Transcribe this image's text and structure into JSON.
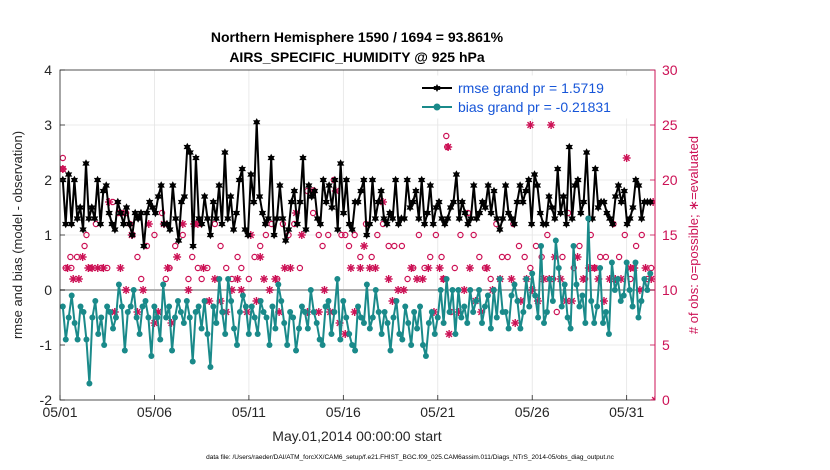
{
  "chart_data": {
    "type": "line",
    "title": "Northern Hemisphere 1590 / 1694 = 93.861%",
    "subtitle": "AIRS_SPECIFIC_HUMIDITY @ 925 hPa",
    "xlabel": "May.01,2014 00:00:00 start",
    "ylabel_left": "rmse and bias (model - observation)",
    "ylabel_right": "# of obs: o=possible; ∗=evaluated",
    "footnote": "data file: /Users/raeder/DAI/ATM_forcXX/CAM6_setup/f.e21.FHIST_BGC.f09_025.CAM6assim.011/Diags_NTrS_2014-05/obs_diag_output.nc",
    "x_range": [
      0,
      31.5
    ],
    "ylim_left": [
      -2,
      4
    ],
    "ylim_right": [
      0,
      30
    ],
    "x_ticks": [
      {
        "pos": 0,
        "label": "05/01"
      },
      {
        "pos": 5,
        "label": "05/06"
      },
      {
        "pos": 10,
        "label": "05/11"
      },
      {
        "pos": 15,
        "label": "05/16"
      },
      {
        "pos": 20,
        "label": "05/21"
      },
      {
        "pos": 25,
        "label": "05/26"
      },
      {
        "pos": 30,
        "label": "05/31"
      }
    ],
    "y_ticks_left": [
      "-2",
      "-1",
      "0",
      "1",
      "2",
      "3",
      "4"
    ],
    "y_ticks_right": [
      "0",
      "5",
      "10",
      "15",
      "20",
      "25",
      "30"
    ],
    "legend_position": "top-right",
    "colors": {
      "rmse": "#000000",
      "bias": "#1a8a8a",
      "obs": "#cc1155",
      "zero_line": "#b0b0b0",
      "grid": "#e4e4e4"
    },
    "series": [
      {
        "name": "rmse grand pr = 1.5719",
        "marker": "hexagram",
        "values": [
          2.0,
          1.2,
          2.1,
          1.2,
          2.0,
          1.3,
          1.5,
          1.1,
          2.3,
          1.3,
          1.5,
          1.3,
          2.0,
          1.2,
          1.8,
          1.9,
          1.4,
          1.2,
          1.1,
          1.6,
          1.4,
          1.2,
          1.5,
          1.2,
          1.0,
          1.4,
          1.3,
          1.4,
          0.8,
          1.4,
          1.6,
          1.5,
          1.4,
          1.7,
          1.9,
          1.2,
          1.2,
          1.1,
          1.9,
          1.3,
          0.9,
          1.6,
          1.7,
          2.6,
          2.5,
          0.8,
          2.4,
          1.3,
          1.2,
          1.7,
          1.3,
          1.0,
          1.6,
          1.3,
          1.9,
          1.2,
          2.5,
          1.3,
          1.7,
          1.1,
          1.4,
          2.0,
          2.2,
          1.1,
          1.0,
          2.1,
          1.6,
          3.05,
          1.7,
          1.4,
          1.2,
          1.3,
          2.4,
          1.0,
          1.3,
          1.9,
          1.3,
          0.9,
          1.1,
          1.6,
          1.8,
          1.2,
          1.6,
          2.4,
          1.1,
          1.9,
          1.7,
          1.8,
          1.3,
          1.2,
          2.0,
          1.6,
          1.9,
          1.5,
          2.0,
          1.1,
          2.3,
          1.4,
          2.0,
          1.2,
          1.1,
          1.6,
          1.6,
          1.8,
          2.0,
          1.0,
          1.2,
          2.0,
          1.3,
          1.6,
          1.8,
          1.3,
          1.2,
          1.4,
          1.3,
          2.0,
          1.2,
          1.3,
          1.3,
          2.0,
          1.5,
          1.6,
          1.8,
          1.3,
          2.0,
          1.2,
          1.4,
          1.9,
          1.2,
          1.5,
          1.6,
          1.3,
          1.2,
          1.3,
          1.5,
          1.6,
          2.1,
          1.3,
          1.6,
          1.4,
          1.2,
          1.3,
          1.9,
          1.3,
          1.4,
          1.6,
          1.5,
          1.9,
          1.4,
          1.8,
          1.3,
          1.1,
          1.3,
          1.9,
          1.4,
          1.3,
          1.2,
          1.6,
          1.9,
          1.6,
          1.8,
          2.0,
          1.2,
          2.1,
          1.9,
          1.4,
          1.2,
          1.2,
          1.7,
          1.5,
          1.3,
          2.2,
          1.4,
          1.7,
          1.2,
          2.6,
          1.3,
          1.9,
          2.0,
          1.4,
          1.6,
          2.5,
          1.3,
          1.3,
          2.2,
          1.5,
          1.6,
          1.6,
          1.4,
          1.3,
          1.2,
          1.7,
          1.9,
          1.6,
          1.8,
          1.2,
          1.3,
          1.5,
          2.0,
          1.9,
          1.3,
          1.6,
          1.6,
          1.6
        ]
      },
      {
        "name": "bias grand pr = -0.21831",
        "marker": "circle",
        "values": [
          -0.3,
          -0.9,
          -0.5,
          -0.1,
          -0.6,
          -0.9,
          -0.3,
          -0.4,
          -0.9,
          -1.7,
          -0.5,
          -0.2,
          -0.8,
          -0.5,
          -1.0,
          -0.3,
          -0.4,
          -0.7,
          -0.5,
          0.1,
          -0.3,
          -1.1,
          -0.4,
          -0.3,
          0.0,
          -0.5,
          -0.8,
          -0.3,
          -0.2,
          -0.5,
          -1.2,
          -0.3,
          -0.5,
          -0.9,
          0.1,
          -0.5,
          -0.3,
          -1.1,
          -0.5,
          -0.2,
          -0.4,
          -0.6,
          -0.2,
          -0.5,
          -1.3,
          -0.4,
          -0.3,
          -0.7,
          -0.2,
          -0.8,
          -1.4,
          -0.3,
          -0.6,
          0.2,
          -0.4,
          -0.8,
          0.2,
          -0.2,
          -0.7,
          -1.0,
          -0.4,
          -0.1,
          -0.3,
          -0.8,
          -0.3,
          -0.5,
          -0.8,
          -0.2,
          -0.4,
          -0.5,
          -1.0,
          -0.3,
          -0.7,
          0.1,
          -0.2,
          -0.6,
          -1.0,
          -0.4,
          -0.5,
          -1.1,
          -0.7,
          -0.3,
          -0.4,
          -0.7,
          0.0,
          -0.4,
          -0.6,
          -0.9,
          -1.0,
          -0.3,
          -0.2,
          -0.8,
          -0.4,
          0.2,
          -0.9,
          -0.2,
          -0.5,
          -0.8,
          -1.0,
          -1.1,
          -0.3,
          -0.5,
          -0.6,
          0.1,
          -0.7,
          -0.5,
          0.0,
          -0.4,
          -0.8,
          -0.4,
          -0.6,
          -1.1,
          -0.5,
          -0.2,
          -0.8,
          -0.9,
          -0.3,
          -0.6,
          -1.0,
          -0.4,
          -0.7,
          -0.3,
          -1.0,
          -1.2,
          -0.6,
          -0.4,
          -0.8,
          -0.5,
          0.0,
          -0.6,
          0.2,
          -0.4,
          0.0,
          -0.8,
          0.0,
          -0.5,
          -0.3,
          -0.6,
          0.0,
          -0.4,
          -0.2,
          0.0,
          -0.6,
          -0.3,
          -0.1,
          -0.7,
          0.0,
          -0.5,
          0.2,
          -0.4,
          -0.4,
          -0.7,
          -0.1,
          0.1,
          -0.2,
          -0.7,
          -0.4,
          0.2,
          -0.3,
          0.3,
          -0.1,
          -0.5,
          0.8,
          -0.6,
          -0.4,
          0.2,
          -0.2,
          0.9,
          0.4,
          -0.3,
          0.1,
          -0.5,
          -0.7,
          0.8,
          0.1,
          -0.3,
          -0.1,
          -0.6,
          1.3,
          -0.2,
          -0.6,
          -0.3,
          0.4,
          -0.6,
          -0.4,
          -0.8,
          0.5,
          0.0,
          0.2,
          -0.2,
          -0.1,
          0.5,
          0.0,
          -0.3,
          0.5,
          -0.5,
          -0.2,
          0.2,
          0.0,
          0.3
        ]
      }
    ],
    "obs_possible": [
      [
        0.15,
        22
      ],
      [
        0.15,
        21
      ],
      [
        0.3,
        12
      ],
      [
        0.55,
        13
      ],
      [
        0.9,
        13
      ],
      [
        0.6,
        12
      ],
      [
        1.3,
        14
      ],
      [
        1.4,
        15
      ],
      [
        1.6,
        12
      ],
      [
        1.9,
        16
      ],
      [
        2.2,
        12
      ],
      [
        2.5,
        12
      ],
      [
        2.8,
        18
      ],
      [
        3.1,
        17
      ],
      [
        3.3,
        17
      ],
      [
        3.5,
        17
      ],
      [
        3.7,
        16
      ],
      [
        4.1,
        13
      ],
      [
        4.3,
        11
      ],
      [
        4.6,
        14
      ],
      [
        5.0,
        15
      ],
      [
        5.4,
        17
      ],
      [
        5.6,
        11
      ],
      [
        5.8,
        12
      ],
      [
        6.1,
        14
      ],
      [
        6.5,
        15
      ],
      [
        6.8,
        11
      ],
      [
        7.0,
        13
      ],
      [
        7.3,
        12
      ],
      [
        7.5,
        11
      ],
      [
        7.8,
        12
      ],
      [
        8.2,
        16
      ],
      [
        8.5,
        14
      ],
      [
        8.8,
        12
      ],
      [
        9.1,
        11
      ],
      [
        9.4,
        13
      ],
      [
        9.6,
        12
      ],
      [
        10.0,
        11
      ],
      [
        10.3,
        13
      ],
      [
        10.6,
        14
      ],
      [
        10.9,
        15
      ],
      [
        11.2,
        16
      ],
      [
        11.5,
        11
      ],
      [
        11.8,
        16
      ],
      [
        12.1,
        15
      ],
      [
        12.4,
        16
      ],
      [
        12.7,
        12
      ],
      [
        13.1,
        19
      ],
      [
        13.4,
        17
      ],
      [
        13.7,
        15
      ],
      [
        13.9,
        14
      ],
      [
        14.2,
        15
      ],
      [
        14.5,
        20
      ],
      [
        14.9,
        15
      ],
      [
        15.1,
        15
      ],
      [
        15.3,
        14
      ],
      [
        15.6,
        15
      ],
      [
        15.9,
        13
      ],
      [
        16.2,
        16
      ],
      [
        16.5,
        13
      ],
      [
        16.8,
        15
      ],
      [
        17.1,
        16
      ],
      [
        17.4,
        14
      ],
      [
        17.7,
        14
      ],
      [
        18.1,
        14
      ],
      [
        18.4,
        11
      ],
      [
        18.7,
        12
      ],
      [
        19.0,
        15
      ],
      [
        19.3,
        12
      ],
      [
        19.6,
        13
      ],
      [
        19.9,
        15
      ],
      [
        20.2,
        13
      ],
      [
        20.3,
        11
      ],
      [
        20.45,
        24
      ],
      [
        20.5,
        23
      ],
      [
        20.7,
        8
      ],
      [
        20.9,
        12
      ],
      [
        21.2,
        15
      ],
      [
        21.6,
        17
      ],
      [
        21.9,
        15
      ],
      [
        22.2,
        13
      ],
      [
        22.5,
        12
      ],
      [
        22.8,
        11
      ],
      [
        23.1,
        16
      ],
      [
        23.4,
        13
      ],
      [
        23.7,
        13
      ],
      [
        24.0,
        16
      ],
      [
        24.3,
        14
      ],
      [
        24.6,
        13
      ],
      [
        24.9,
        12
      ],
      [
        25.2,
        14
      ],
      [
        25.5,
        13
      ],
      [
        25.8,
        15
      ],
      [
        26.1,
        11
      ],
      [
        26.3,
        8
      ],
      [
        26.6,
        13
      ],
      [
        26.9,
        17
      ],
      [
        27.2,
        12
      ],
      [
        27.5,
        14
      ],
      [
        27.8,
        11
      ],
      [
        28.1,
        15
      ],
      [
        28.3,
        12
      ],
      [
        28.6,
        13
      ],
      [
        28.9,
        13
      ],
      [
        29.3,
        16
      ],
      [
        29.6,
        13
      ],
      [
        29.9,
        15
      ],
      [
        30.2,
        11
      ],
      [
        30.5,
        14
      ],
      [
        30.8,
        15
      ],
      [
        31.1,
        11
      ],
      [
        31.3,
        12
      ]
    ],
    "obs_evaluated": [
      [
        0.15,
        21
      ],
      [
        0.4,
        12
      ],
      [
        0.7,
        11
      ],
      [
        1.0,
        11
      ],
      [
        1.2,
        13
      ],
      [
        1.5,
        12
      ],
      [
        1.7,
        12
      ],
      [
        2.0,
        12
      ],
      [
        2.3,
        12
      ],
      [
        2.6,
        18
      ],
      [
        2.9,
        8
      ],
      [
        3.2,
        12
      ],
      [
        3.5,
        10
      ],
      [
        3.8,
        15
      ],
      [
        4.1,
        8
      ],
      [
        4.4,
        10
      ],
      [
        4.7,
        16
      ],
      [
        5.0,
        7
      ],
      [
        5.2,
        8
      ],
      [
        5.5,
        16
      ],
      [
        5.7,
        12
      ],
      [
        5.9,
        7
      ],
      [
        6.2,
        13
      ],
      [
        6.5,
        16
      ],
      [
        6.8,
        10
      ],
      [
        7.1,
        16
      ],
      [
        7.3,
        16
      ],
      [
        7.6,
        12
      ],
      [
        7.9,
        9
      ],
      [
        8.2,
        11
      ],
      [
        8.5,
        9
      ],
      [
        8.8,
        8
      ],
      [
        9.1,
        10
      ],
      [
        9.4,
        11
      ],
      [
        9.6,
        10
      ],
      [
        9.9,
        8
      ],
      [
        10.1,
        15
      ],
      [
        10.4,
        9
      ],
      [
        10.6,
        13
      ],
      [
        10.8,
        11
      ],
      [
        11.1,
        10
      ],
      [
        11.4,
        11
      ],
      [
        11.6,
        8
      ],
      [
        11.9,
        12
      ],
      [
        12.2,
        12
      ],
      [
        12.5,
        17
      ],
      [
        12.8,
        15
      ],
      [
        13.1,
        8
      ],
      [
        13.4,
        19
      ],
      [
        13.7,
        8
      ],
      [
        14.0,
        10
      ],
      [
        14.3,
        8
      ],
      [
        14.6,
        19
      ],
      [
        14.8,
        7
      ],
      [
        15.1,
        6
      ],
      [
        15.4,
        12
      ],
      [
        15.6,
        8
      ],
      [
        15.9,
        12
      ],
      [
        16.1,
        14
      ],
      [
        16.4,
        12
      ],
      [
        16.7,
        12
      ],
      [
        17.1,
        18
      ],
      [
        17.4,
        11
      ],
      [
        17.6,
        9
      ],
      [
        17.9,
        10
      ],
      [
        18.2,
        10
      ],
      [
        18.6,
        12
      ],
      [
        18.9,
        11
      ],
      [
        19.2,
        11
      ],
      [
        19.5,
        12
      ],
      [
        19.8,
        8
      ],
      [
        20.1,
        12
      ],
      [
        20.3,
        11
      ],
      [
        20.55,
        23
      ],
      [
        20.6,
        6
      ],
      [
        21.1,
        8
      ],
      [
        21.4,
        10
      ],
      [
        21.7,
        12
      ],
      [
        22.0,
        9
      ],
      [
        22.3,
        8
      ],
      [
        22.6,
        12
      ],
      [
        22.9,
        10
      ],
      [
        23.3,
        11
      ],
      [
        23.6,
        27
      ],
      [
        23.9,
        11
      ],
      [
        24.1,
        7
      ],
      [
        24.4,
        9
      ],
      [
        24.7,
        11
      ],
      [
        25.0,
        10
      ],
      [
        25.3,
        9
      ],
      [
        25.6,
        11
      ],
      [
        25.9,
        11
      ],
      [
        26.2,
        13
      ],
      [
        26.5,
        11
      ],
      [
        26.8,
        9
      ],
      [
        27.1,
        9
      ],
      [
        27.4,
        13
      ],
      [
        27.7,
        11
      ],
      [
        28.0,
        12
      ],
      [
        28.3,
        12
      ],
      [
        28.5,
        11
      ],
      [
        28.8,
        9
      ],
      [
        29.1,
        11
      ],
      [
        29.4,
        11
      ],
      [
        29.7,
        11
      ],
      [
        30.0,
        22
      ],
      [
        30.2,
        12
      ],
      [
        30.4,
        12
      ],
      [
        30.7,
        10
      ],
      [
        31.0,
        12
      ],
      [
        31.3,
        11
      ],
      [
        31.4,
        18
      ],
      [
        24.9,
        25
      ],
      [
        26.0,
        25
      ],
      [
        31.5,
        0
      ]
    ]
  }
}
